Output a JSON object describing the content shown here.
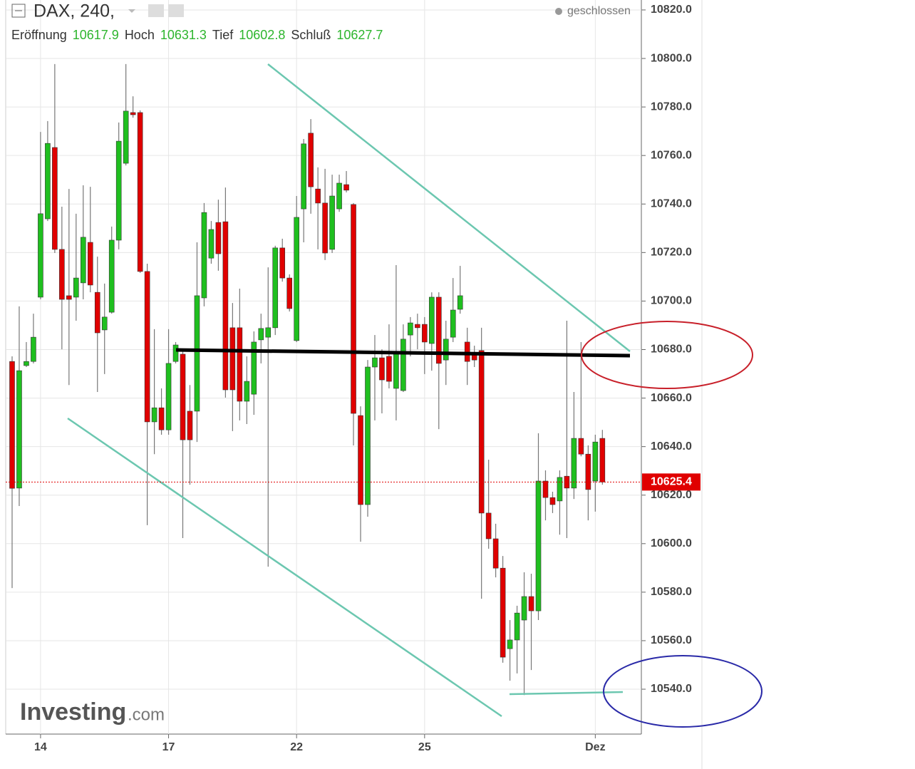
{
  "chart_data": {
    "type": "candlestick",
    "symbol": "DAX, 240,",
    "status": "geschlossen",
    "ohlc_header": [
      {
        "label": "Eröffnung",
        "value": 10617.9
      },
      {
        "label": "Hoch",
        "value": 10631.3
      },
      {
        "label": "Tief",
        "value": 10602.8
      },
      {
        "label": "Schluß",
        "value": 10627.7
      }
    ],
    "watermark": [
      "Investing",
      ".com"
    ],
    "categories": [
      null,
      null,
      null,
      null,
      "14",
      null,
      null,
      null,
      null,
      null,
      null,
      null,
      null,
      null,
      null,
      null,
      null,
      null,
      null,
      null,
      null,
      null,
      "17",
      null,
      null,
      null,
      null,
      null,
      null,
      null,
      null,
      null,
      null,
      null,
      null,
      null,
      null,
      null,
      null,
      null,
      "22",
      null,
      null,
      null,
      null,
      null,
      null,
      null,
      null,
      null,
      null,
      null,
      null,
      null,
      null,
      null,
      null,
      null,
      "25",
      null,
      null,
      null,
      null,
      null,
      null,
      null,
      null,
      null,
      null,
      null,
      null,
      null,
      null,
      null,
      null,
      null,
      null,
      null,
      null,
      null,
      null,
      null,
      "Dez",
      null
    ],
    "open": [
      10675.1,
      10622.9,
      10673.4,
      10675.1,
      10701.6,
      10733.9,
      10763.3,
      10721.3,
      10702.2,
      10701.6,
      10707.5,
      10724.2,
      10703.6,
      10688.1,
      10695.4,
      10725.1,
      10756.8,
      10777.7,
      10777.7,
      10712.2,
      10650.2,
      10656.0,
      10646.9,
      10675.1,
      10678.1,
      10654.6,
      10654.6,
      10701.3,
      10717.7,
      10732.4,
      10732.7,
      10689.0,
      10689.0,
      10658.7,
      10661.6,
      10684.0,
      10685.1,
      10689.0,
      10721.9,
      10709.5,
      10683.7,
      10738.0,
      10769.2,
      10746.2,
      10740.4,
      10721.3,
      10738.0,
      10748.0,
      10739.8,
      10652.8,
      10616.1,
      10672.8,
      10676.6,
      10677.2,
      10664.0,
      10663.1,
      10686.0,
      10690.4,
      10690.4,
      10682.5,
      10701.6,
      10675.7,
      10685.1,
      10696.6,
      10683.1,
      10678.7,
      10679.6,
      10612.6,
      10602.0,
      10589.9,
      10556.7,
      10560.3,
      10568.5,
      10578.2,
      10572.3,
      10625.8,
      10619.0,
      10617.6,
      10627.8,
      10622.9,
      10643.4,
      10636.9,
      10625.8,
      10643.4
    ],
    "high": [
      10677.2,
      10697.8,
      10683.1,
      10694.8,
      10769.7,
      10774.2,
      10797.7,
      10738.9,
      10746.2,
      10736.0,
      10747.7,
      10747.1,
      10718.3,
      10707.2,
      10730.7,
      10773.6,
      10797.7,
      10784.4,
      10778.6,
      10715.4,
      10688.4,
      10664.0,
      10688.4,
      10683.1,
      10680.1,
      10665.4,
      10724.2,
      10740.4,
      10733.0,
      10741.8,
      10746.8,
      10699.2,
      10705.1,
      10677.2,
      10687.5,
      10694.8,
      10713.9,
      10722.8,
      10725.7,
      10711.0,
      10743.3,
      10766.8,
      10775.0,
      10755.1,
      10754.5,
      10752.1,
      10752.1,
      10753.6,
      10740.4,
      10656.6,
      10675.7,
      10686.0,
      10680.1,
      10690.4,
      10714.8,
      10690.4,
      10693.4,
      10694.8,
      10693.4,
      10703.6,
      10703.6,
      10691.9,
      10709.5,
      10714.5,
      10689.0,
      10681.6,
      10689.0,
      10634.6,
      10608.2,
      10594.9,
      10568.5,
      10574.4,
      10588.2,
      10587.6,
      10645.5,
      10630.2,
      10621.4,
      10630.2,
      10691.9,
      10662.5,
      10683.1,
      10640.5,
      10644.9,
      10646.9
    ],
    "low": [
      10581.7,
      10615.5,
      10672.8,
      10674.3,
      10700.7,
      10733.0,
      10719.8,
      10680.1,
      10665.4,
      10691.9,
      10700.7,
      10703.6,
      10662.5,
      10669.9,
      10694.8,
      10721.3,
      10755.9,
      10775.6,
      10711.6,
      10607.6,
      10636.9,
      10644.9,
      10644.9,
      10674.3,
      10602.3,
      10624.3,
      10641.9,
      10697.8,
      10715.4,
      10712.5,
      10660.2,
      10646.4,
      10650.8,
      10649.3,
      10653.1,
      10674.3,
      10590.5,
      10686.0,
      10708.0,
      10695.7,
      10683.1,
      10724.2,
      10736.0,
      10721.3,
      10716.9,
      10719.8,
      10736.8,
      10744.8,
      10640.5,
      10600.8,
      10611.1,
      10650.8,
      10653.7,
      10664.0,
      10650.8,
      10662.5,
      10677.2,
      10680.1,
      10669.9,
      10671.3,
      10647.2,
      10665.4,
      10683.1,
      10694.8,
      10665.4,
      10672.8,
      10577.3,
      10597.9,
      10586.1,
      10550.9,
      10543.5,
      10546.5,
      10537.6,
      10547.9,
      10568.5,
      10609.6,
      10612.6,
      10603.7,
      10602.3,
      10618.4,
      10636.0,
      10609.6,
      10613.2,
      10624.3
    ],
    "close": [
      10622.8,
      10671.3,
      10675.1,
      10685.1,
      10736.0,
      10765.0,
      10721.3,
      10700.7,
      10700.7,
      10709.5,
      10726.3,
      10706.6,
      10686.9,
      10693.4,
      10725.1,
      10765.9,
      10778.3,
      10776.8,
      10712.2,
      10650.2,
      10656.0,
      10646.9,
      10674.3,
      10681.9,
      10642.8,
      10642.8,
      10702.2,
      10736.5,
      10729.5,
      10719.5,
      10663.4,
      10663.4,
      10658.7,
      10666.9,
      10683.1,
      10688.7,
      10689.0,
      10721.9,
      10709.5,
      10696.9,
      10734.5,
      10764.8,
      10747.1,
      10740.4,
      10719.8,
      10743.3,
      10748.6,
      10745.7,
      10653.7,
      10616.1,
      10672.8,
      10676.6,
      10667.5,
      10666.9,
      10679.3,
      10684.3,
      10691.0,
      10689.0,
      10683.1,
      10701.6,
      10674.3,
      10684.3,
      10696.3,
      10702.2,
      10675.1,
      10675.7,
      10612.6,
      10602.0,
      10589.9,
      10553.2,
      10560.3,
      10571.4,
      10578.2,
      10572.3,
      10625.8,
      10619.0,
      10616.1,
      10627.3,
      10622.9,
      10643.4,
      10636.9,
      10622.3,
      10641.9,
      10625.4
    ],
    "up_color": "#1fbf1f",
    "down_color": "#e00000",
    "last_price": 10625.4,
    "ylim": [
      10521.5,
      10824.1
    ],
    "yticks": [
      {
        "value": 10540,
        "label": "10540.0"
      },
      {
        "value": 10560,
        "label": "10560.0"
      },
      {
        "value": 10580,
        "label": "10580.0"
      },
      {
        "value": 10600,
        "label": "10600.0"
      },
      {
        "value": 10620,
        "label": "10620.0"
      },
      {
        "value": 10640,
        "label": "10640.0"
      },
      {
        "value": 10660,
        "label": "10660.0"
      },
      {
        "value": 10680,
        "label": "10680.0"
      },
      {
        "value": 10700,
        "label": "10700.0"
      },
      {
        "value": 10720,
        "label": "10720.0"
      },
      {
        "value": 10740,
        "label": "10740.0"
      },
      {
        "value": 10760,
        "label": "10760.0"
      },
      {
        "value": 10780,
        "label": "10780.0"
      },
      {
        "value": 10800,
        "label": "10800.0"
      },
      {
        "value": 10820,
        "label": "10820.0"
      }
    ],
    "grid": true
  }
}
